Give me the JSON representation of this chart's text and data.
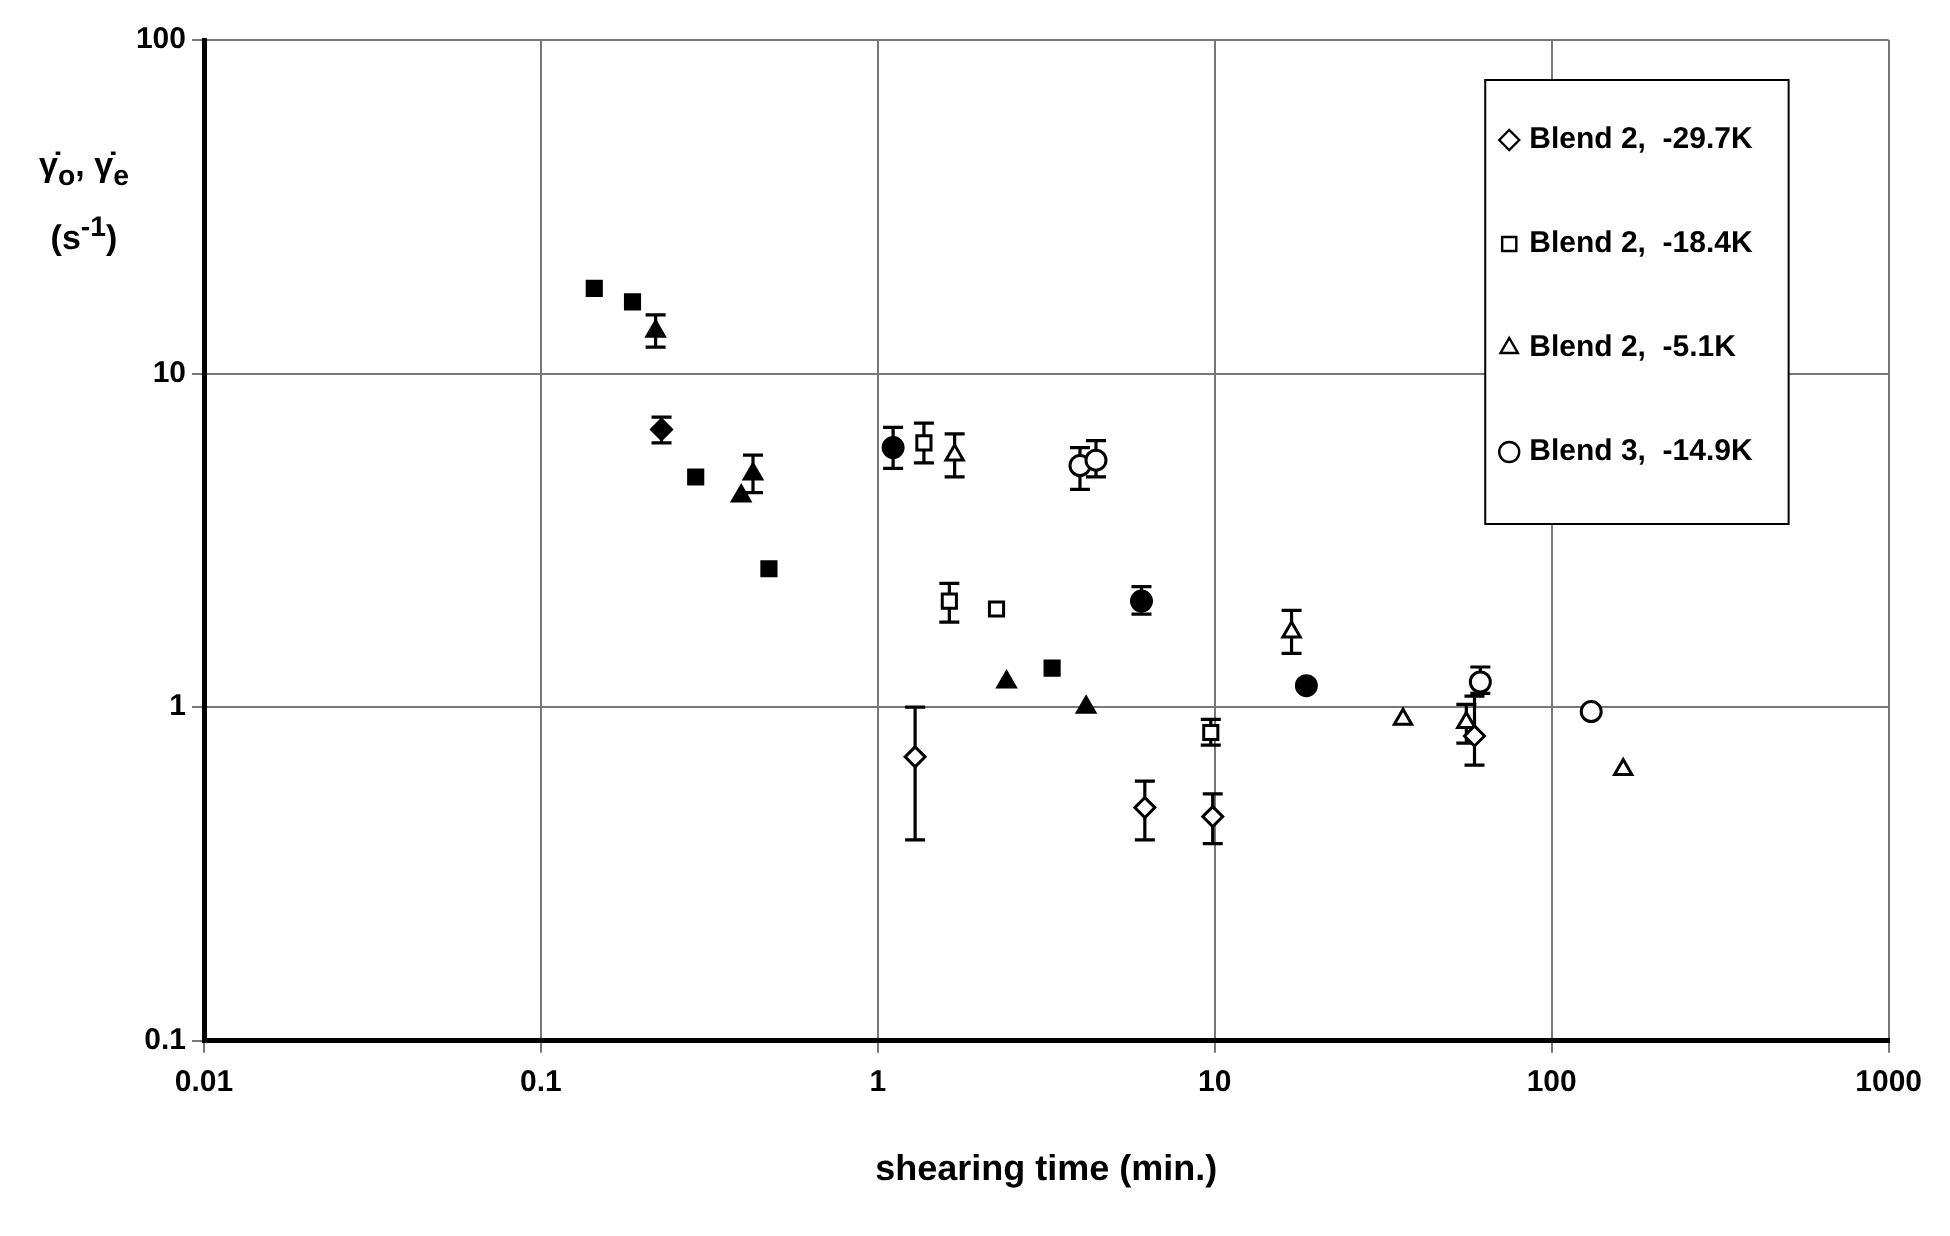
{
  "chart_data": {
    "type": "scatter",
    "xlabel": "shearing time (min.)",
    "ylabel": "γ̇$_{o}$, γ̇$_{e}$ (s$^{-1}$)",
    "log": "xy",
    "xlim": [
      0.01,
      1000
    ],
    "xticks": [
      0.01,
      0.1,
      1,
      10,
      100,
      1000
    ],
    "ylim": [
      0.1,
      100
    ],
    "yticks": [
      0.1,
      1,
      10,
      100
    ],
    "grid": true,
    "legend": "top right",
    "series": [
      {
        "name": "Blend 2,  -29.7K",
        "color": "#000000",
        "marker": "diamond",
        "x": [
          1.29,
          6.2,
          9.86,
          59
        ],
        "values": [
          0.71,
          0.5,
          0.47,
          0.82
        ],
        "errors": [
          [
            0.4,
            1.0
          ],
          [
            0.4,
            0.6
          ],
          [
            0.39,
            0.55
          ],
          [
            0.67,
            1.08
          ]
        ]
      },
      {
        "name": "Blend 2,  -18.4K",
        "color": "#000000",
        "marker": "square",
        "x": [
          1.37,
          1.63,
          2.25,
          9.73
        ],
        "values": [
          6.2,
          2.08,
          1.97,
          0.84
        ],
        "errors": [
          [
            5.4,
            7.1
          ],
          [
            1.8,
            2.35
          ],
          null,
          [
            0.77,
            0.92
          ]
        ]
      },
      {
        "name": "Blend 2,  -5.1K",
        "color": "#000000",
        "marker": "triangle",
        "x": [
          1.69,
          16.9,
          36.2,
          55.8,
          163
        ],
        "values": [
          5.7,
          1.68,
          0.92,
          0.9,
          0.65
        ],
        "errors": [
          [
            4.9,
            6.6
          ],
          [
            1.45,
            1.95
          ],
          null,
          [
            0.78,
            1.02
          ],
          null
        ]
      },
      {
        "name": "Blend 3,  -14.9K",
        "color": "#000000",
        "marker": "circle",
        "x": [
          3.98,
          4.44,
          61.4,
          131
        ],
        "values": [
          5.3,
          5.5,
          1.19,
          0.97
        ],
        "errors": [
          [
            4.5,
            6.0
          ],
          [
            4.9,
            6.3
          ],
          [
            1.1,
            1.32
          ],
          null
        ]
      },
      {
        "color": "#000000",
        "marker": "diamond",
        "x": [
          0.228
        ],
        "values": [
          6.8
        ],
        "errors": [
          [
            6.2,
            7.4
          ]
        ]
      },
      {
        "color": "#000000",
        "marker": "square",
        "x": [
          0.144,
          0.187,
          0.288,
          0.475,
          3.29
        ],
        "values": [
          18,
          16.4,
          4.9,
          2.6,
          1.31
        ],
        "errors": [
          null,
          null,
          null,
          null,
          null
        ]
      },
      {
        "color": "#000000",
        "marker": "triangle",
        "x": [
          0.219,
          0.393,
          0.426,
          2.41,
          4.15
        ],
        "values": [
          13.4,
          4.3,
          5.0,
          1.19,
          1.0
        ],
        "errors": [
          [
            12,
            15
          ],
          null,
          [
            4.4,
            5.7
          ],
          null,
          null
        ]
      },
      {
        "color": "#000000",
        "marker": "circle",
        "x": [
          1.11,
          6.06,
          18.7
        ],
        "values": [
          6.0,
          2.08,
          1.16
        ],
        "errors": [
          [
            5.2,
            6.9
          ],
          [
            1.9,
            2.3
          ],
          null
        ]
      }
    ]
  }
}
